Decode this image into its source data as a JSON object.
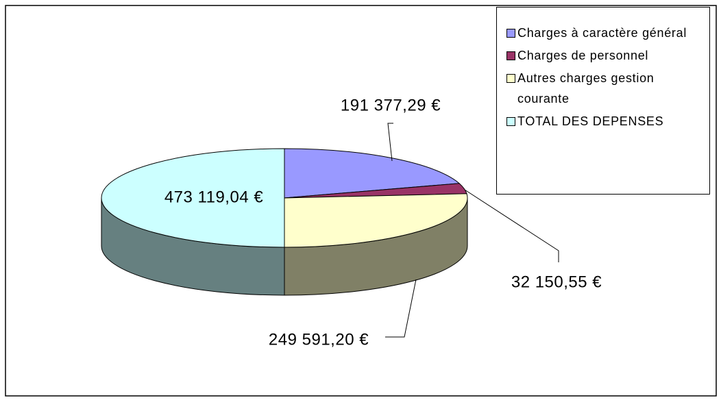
{
  "chart_data": {
    "type": "pie",
    "categories": [
      "Charges à caractère général",
      "Charges de personnel",
      "Autres charges gestion courante",
      "TOTAL DES DEPENSES"
    ],
    "values": [
      191377.29,
      32150.55,
      249591.2,
      473119.04
    ],
    "value_labels": [
      "191 377,29 €",
      "32 150,55 €",
      "249 591,20 €",
      "473 119,04 €"
    ],
    "colors": [
      "#9999ff",
      "#993366",
      "#ffffcc",
      "#ccffff"
    ],
    "legend": "top-right"
  }
}
